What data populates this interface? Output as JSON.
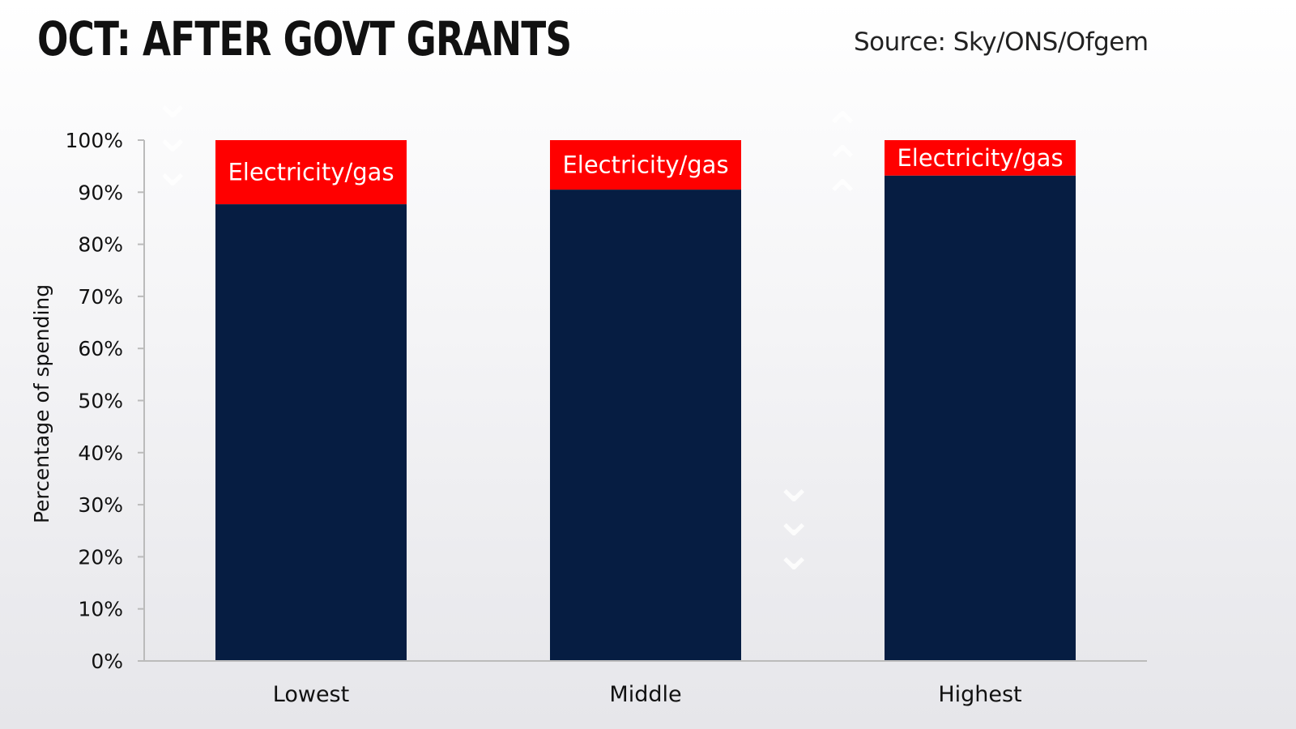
{
  "header": {
    "title": "OCT: AFTER GOVT GRANTS",
    "source": "Source: Sky/ONS/Ofgem"
  },
  "colors": {
    "other": "#061d42",
    "electricity": "#ff0000",
    "axis": "#bbbbbb"
  },
  "chart_data": {
    "type": "bar",
    "stacked": true,
    "categories": [
      "Lowest",
      "Middle",
      "Highest"
    ],
    "series": [
      {
        "name": "",
        "values": [
          87.7,
          90.5,
          93.2
        ]
      },
      {
        "name": "Electricity/gas",
        "values": [
          12.3,
          9.5,
          6.8
        ]
      }
    ],
    "segment_label": "Electricity/gas",
    "ylabel": "Percentage of spending",
    "ylim": [
      0,
      100
    ],
    "yticks": [
      "0%",
      "10%",
      "20%",
      "30%",
      "40%",
      "50%",
      "60%",
      "70%",
      "80%",
      "90%",
      "100%"
    ],
    "grid": false,
    "legend": "none"
  }
}
